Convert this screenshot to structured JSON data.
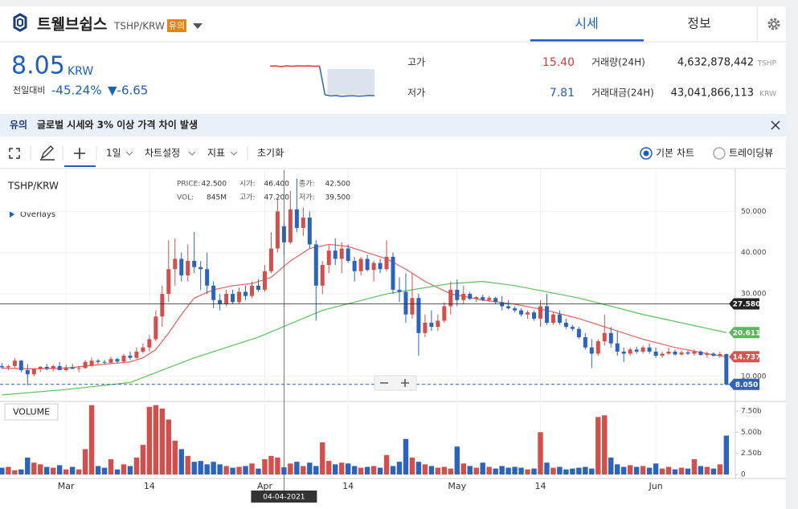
{
  "header": {
    "name": "트웰브쉽스",
    "pair": "TSHP/KRW",
    "badge": "유의",
    "tabs": [
      "시세",
      "정보"
    ]
  },
  "ticker": {
    "price": "8.05",
    "currency": "KRW",
    "change_label": "전일대비",
    "change_rate": "-45.24%",
    "change": "▼-6.65",
    "sparkline": [
      15.3,
      15.4,
      15.2,
      15.4,
      15.3,
      15.4,
      15.35,
      15.4,
      15.3,
      15.35,
      8.3,
      8.0,
      8.1,
      7.9,
      8.0,
      8.05,
      7.95,
      8.0,
      8.1,
      8.05
    ]
  },
  "stats": [
    {
      "label": "고가",
      "value": "15.40",
      "amount_label": "거래량(24H)",
      "amount": "4,632,878,442",
      "unit": "TSHP"
    },
    {
      "label": "저가",
      "value": "7.81",
      "amount_label": "거래대금(24H)",
      "amount": "43,041,866,113",
      "unit": "KRW"
    }
  ],
  "notice": {
    "tag": "유의",
    "text": "글로벌 시세와 3% 이상 가격 차이 발생"
  },
  "toolbar": {
    "interval": "1일",
    "settings": "차트설정",
    "indicators": "지표",
    "reset": "초기화",
    "chart_modes": [
      "기본 차트",
      "트레이딩뷰"
    ]
  },
  "chart_data": {
    "type": "candlestick",
    "symbol": "TSHP/KRW",
    "overlays": "Overlays",
    "volume_label": "VOLUME",
    "up_color": "#d24f4b",
    "down_color": "#2b63bd",
    "readout": [
      {
        "label": "PRICE:",
        "value": "42.500"
      },
      {
        "label": "시가:",
        "value": "46.400"
      },
      {
        "label": "종가:",
        "value": "42.500"
      },
      {
        "label": "VOL:",
        "value": "845M"
      },
      {
        "label": "고가:",
        "value": "47.200"
      },
      {
        "label": "저가:",
        "value": "39.500"
      }
    ],
    "crosshair": {
      "x": 44,
      "label": "04-04-2021"
    },
    "xlim": [
      -0.3,
      114.4
    ],
    "xticks": [
      {
        "value": 10,
        "label": "Mar"
      },
      {
        "value": 23,
        "label": "14"
      },
      {
        "value": 41,
        "label": "Apr"
      },
      {
        "value": 54,
        "label": "14"
      },
      {
        "value": 71,
        "label": "May"
      },
      {
        "value": 84,
        "label": "14"
      },
      {
        "value": 102,
        "label": "Jun"
      }
    ],
    "ylim": [
      4.5,
      60
    ],
    "yticks": [
      {
        "value": 10,
        "label": "10.000"
      },
      {
        "value": 30,
        "label": "30.000"
      },
      {
        "value": 40,
        "label": "40.000"
      },
      {
        "value": 50,
        "label": "50.000"
      }
    ],
    "vol_ylim": [
      0,
      8.64
    ],
    "vol_ticks": [
      {
        "value": 0,
        "label": "0"
      },
      {
        "value": 2.5,
        "label": "2.50b"
      },
      {
        "value": 5,
        "label": "5.00b"
      },
      {
        "value": 7.5,
        "label": "7.50b"
      }
    ],
    "price_badges": [
      {
        "value": 27.58,
        "label": "27.580",
        "color": "#222222",
        "line": "solid"
      },
      {
        "value": 20.611,
        "label": "20.611",
        "color": "#5cb85c",
        "line": "none"
      },
      {
        "value": 14.737,
        "label": "14.737",
        "color": "#d9534f",
        "line": "none"
      },
      {
        "value": 8.05,
        "label": "8.050",
        "color": "#2b63bd",
        "line": "dashed"
      }
    ],
    "ma": [
      {
        "color": "#e0625e",
        "x": [
          0,
          5,
          10,
          15,
          20,
          22,
          24,
          26,
          28,
          30,
          33,
          36,
          39,
          42,
          45,
          48,
          51,
          54,
          57,
          60,
          63,
          66,
          70,
          75,
          80,
          85,
          90,
          95,
          100,
          105,
          110,
          113
        ],
        "values": [
          12,
          11.8,
          12,
          12.8,
          13.5,
          14.5,
          16.5,
          20.5,
          25,
          29,
          31,
          32,
          32.5,
          34,
          38,
          41,
          42,
          41.5,
          40,
          38.5,
          36,
          33,
          30,
          28.5,
          27.5,
          26,
          24,
          21.5,
          19,
          17,
          15.5,
          14.737
        ]
      },
      {
        "color": "#5cc15c",
        "x": [
          0,
          10,
          20,
          30,
          40,
          50,
          60,
          70,
          75,
          80,
          90,
          100,
          113
        ],
        "values": [
          5.5,
          6.8,
          8.5,
          14.5,
          19.5,
          26,
          30,
          32.5,
          33,
          32,
          29,
          25,
          20.611
        ]
      }
    ],
    "ohlc": [
      [
        12.5,
        13.2,
        11.8,
        12.2
      ],
      [
        12.2,
        12.8,
        11.5,
        12.5
      ],
      [
        12.5,
        14.5,
        12.0,
        13.8
      ],
      [
        13.8,
        14.0,
        11.0,
        11.5
      ],
      [
        11.5,
        13.0,
        7.8,
        10.5
      ],
      [
        10.5,
        12.0,
        10.0,
        11.8
      ],
      [
        11.8,
        12.5,
        11.0,
        12.3
      ],
      [
        12.3,
        13.0,
        11.5,
        11.8
      ],
      [
        11.8,
        12.8,
        11.2,
        12.5
      ],
      [
        12.5,
        13.5,
        12.0,
        11.5
      ],
      [
        11.5,
        12.8,
        11.2,
        12.2
      ],
      [
        12.2,
        13.0,
        11.8,
        11.8
      ],
      [
        11.8,
        12.5,
        11.0,
        12.0
      ],
      [
        12.0,
        14.0,
        11.8,
        13.5
      ],
      [
        12.6,
        14.5,
        12.3,
        13.8
      ],
      [
        13.8,
        14.2,
        13.0,
        13.5
      ],
      [
        13.5,
        14.0,
        12.8,
        13.3
      ],
      [
        13.3,
        14.8,
        13.0,
        14.2
      ],
      [
        14.2,
        14.5,
        13.2,
        13.6
      ],
      [
        13.6,
        15.5,
        13.4,
        15.0
      ],
      [
        15.0,
        16.0,
        14.0,
        14.5
      ],
      [
        14.5,
        17.0,
        14.2,
        16.0
      ],
      [
        16.0,
        18.0,
        15.5,
        17.0
      ],
      [
        17.0,
        20.0,
        16.0,
        19.0
      ],
      [
        19.0,
        26.0,
        18.5,
        24.5
      ],
      [
        24.5,
        32.0,
        22.0,
        30.0
      ],
      [
        30.0,
        43.0,
        28.0,
        36.0
      ],
      [
        36.0,
        43.5,
        32.0,
        38.5
      ],
      [
        38.5,
        40.0,
        33.0,
        34.5
      ],
      [
        34.5,
        42.0,
        33.0,
        38.0
      ],
      [
        38.0,
        45.0,
        35.0,
        36.5
      ],
      [
        36.5,
        38.0,
        31.0,
        36.0
      ],
      [
        36.0,
        40.0,
        30.0,
        32.0
      ],
      [
        32.0,
        33.0,
        26.5,
        28.5
      ],
      [
        28.5,
        30.0,
        26.0,
        27.5
      ],
      [
        27.5,
        31.0,
        27.0,
        30.0
      ],
      [
        30.0,
        31.0,
        27.5,
        28.0
      ],
      [
        28.0,
        31.5,
        27.5,
        30.5
      ],
      [
        30.5,
        32.0,
        28.5,
        29.5
      ],
      [
        29.5,
        33.0,
        29.0,
        32.0
      ],
      [
        32.0,
        33.5,
        30.5,
        31.0
      ],
      [
        31.0,
        37.0,
        30.5,
        35.5
      ],
      [
        35.5,
        45.0,
        35.0,
        41.0
      ],
      [
        41.0,
        53.0,
        40.0,
        50.0
      ],
      [
        46.4,
        47.2,
        39.5,
        42.5
      ],
      [
        42.5,
        55.0,
        42.0,
        50.5
      ],
      [
        50.5,
        58.0,
        45.0,
        46.0
      ],
      [
        46.0,
        51.0,
        44.0,
        48.5
      ],
      [
        48.5,
        50.0,
        41.0,
        42.0
      ],
      [
        42.0,
        43.0,
        23.5,
        32.0
      ],
      [
        32.0,
        38.0,
        30.0,
        37.0
      ],
      [
        37.0,
        42.0,
        35.0,
        40.5
      ],
      [
        40.5,
        43.5,
        37.0,
        38.5
      ],
      [
        38.5,
        42.5,
        35.0,
        41.0
      ],
      [
        41.0,
        42.0,
        37.5,
        38.0
      ],
      [
        38.0,
        39.0,
        33.0,
        35.5
      ],
      [
        35.5,
        39.0,
        34.5,
        38.5
      ],
      [
        38.5,
        39.5,
        35.5,
        35.8
      ],
      [
        35.8,
        38.0,
        33.0,
        37.5
      ],
      [
        37.5,
        38.5,
        35.0,
        36.0
      ],
      [
        36.0,
        43.0,
        35.5,
        39.0
      ],
      [
        39.0,
        40.0,
        30.0,
        31.0
      ],
      [
        31.0,
        34.0,
        28.0,
        30.5
      ],
      [
        30.5,
        35.0,
        23.0,
        25.0
      ],
      [
        25.0,
        35.0,
        24.0,
        29.0
      ],
      [
        29.0,
        30.0,
        15.0,
        20.5
      ],
      [
        20.5,
        25.0,
        19.5,
        23.0
      ],
      [
        23.0,
        26.0,
        21.0,
        22.0
      ],
      [
        22.0,
        25.0,
        21.0,
        23.5
      ],
      [
        23.5,
        28.0,
        23.0,
        27.0
      ],
      [
        27.0,
        33.0,
        25.0,
        31.0
      ],
      [
        31.0,
        33.5,
        27.0,
        28.5
      ],
      [
        28.5,
        32.0,
        27.5,
        30.0
      ],
      [
        30.0,
        30.5,
        28.5,
        28.8
      ],
      [
        28.8,
        29.5,
        28.0,
        29.2
      ],
      [
        29.2,
        29.8,
        28.2,
        28.5
      ],
      [
        28.5,
        29.5,
        28.0,
        29.0
      ],
      [
        29.0,
        29.3,
        27.5,
        28.0
      ],
      [
        28.0,
        29.5,
        26.0,
        27.0
      ],
      [
        27.0,
        28.5,
        26.2,
        26.5
      ],
      [
        26.5,
        27.0,
        25.5,
        26.0
      ],
      [
        26.0,
        26.5,
        24.5,
        25.0
      ],
      [
        25.0,
        26.0,
        24.0,
        25.5
      ],
      [
        25.5,
        26.0,
        23.5,
        24.0
      ],
      [
        24.0,
        28.5,
        22.0,
        27.0
      ],
      [
        27.0,
        30.0,
        22.5,
        23.0
      ],
      [
        23.0,
        25.5,
        22.5,
        25.0
      ],
      [
        25.0,
        26.0,
        22.5,
        23.0
      ],
      [
        23.0,
        24.0,
        21.5,
        22.0
      ],
      [
        22.0,
        22.5,
        21.0,
        21.5
      ],
      [
        21.5,
        22.0,
        19.0,
        19.5
      ],
      [
        19.5,
        20.5,
        16.5,
        17.0
      ],
      [
        17.0,
        19.0,
        12.0,
        15.5
      ],
      [
        15.5,
        19.0,
        15.0,
        18.5
      ],
      [
        18.5,
        25.0,
        17.5,
        20.5
      ],
      [
        20.5,
        22.0,
        17.0,
        18.0
      ],
      [
        18.0,
        21.0,
        15.0,
        16.0
      ],
      [
        16.0,
        17.0,
        13.5,
        15.5
      ],
      [
        15.5,
        17.0,
        15.0,
        16.5
      ],
      [
        16.5,
        17.2,
        15.5,
        16.0
      ],
      [
        16.0,
        17.5,
        15.5,
        17.0
      ],
      [
        17.0,
        18.0,
        15.5,
        16.0
      ],
      [
        16.0,
        17.0,
        14.5,
        15.0
      ],
      [
        15.0,
        16.0,
        14.5,
        15.5
      ],
      [
        15.5,
        17.0,
        15.2,
        16.0
      ],
      [
        16.0,
        16.5,
        15.0,
        15.3
      ],
      [
        15.3,
        16.3,
        15.0,
        15.8
      ],
      [
        15.8,
        16.2,
        15.2,
        15.5
      ],
      [
        15.5,
        16.5,
        15.0,
        16.0
      ],
      [
        16.0,
        16.3,
        15.0,
        15.2
      ],
      [
        15.2,
        16.0,
        14.5,
        15.5
      ],
      [
        15.5,
        15.8,
        14.8,
        15.0
      ],
      [
        15.0,
        16.0,
        14.5,
        15.4
      ],
      [
        15.4,
        15.5,
        7.81,
        8.05
      ]
    ],
    "volume": [
      0.8,
      0.9,
      0.5,
      0.6,
      2.0,
      1.4,
      1.2,
      0.9,
      0.8,
      1.1,
      0.6,
      0.9,
      0.6,
      3.0,
      8.2,
      1.0,
      0.8,
      1.8,
      0.6,
      1.2,
      1.0,
      2.0,
      3.5,
      8.0,
      8.2,
      7.8,
      6.5,
      4.0,
      3.0,
      2.2,
      1.5,
      1.6,
      1.2,
      1.5,
      1.2,
      1.0,
      0.8,
      0.9,
      1.0,
      1.3,
      0.7,
      1.8,
      2.2,
      2.0,
      0.845,
      1.3,
      1.5,
      1.0,
      1.4,
      1.0,
      3.8,
      1.6,
      1.2,
      1.4,
      1.3,
      1.0,
      0.8,
      0.9,
      1.0,
      0.8,
      2.3,
      1.0,
      1.5,
      4.2,
      2.0,
      1.5,
      1.2,
      1.0,
      0.8,
      0.9,
      0.7,
      3.3,
      1.3,
      1.0,
      0.8,
      1.4,
      0.9,
      0.7,
      1.0,
      0.8,
      0.9,
      0.8,
      0.6,
      0.7,
      5.0,
      1.4,
      0.8,
      0.9,
      0.6,
      0.7,
      0.8,
      0.9,
      0.7,
      6.8,
      7.0,
      2.0,
      1.2,
      0.9,
      1.1,
      0.9,
      1.0,
      0.8,
      1.3,
      0.7,
      0.9,
      0.6,
      0.8,
      0.7,
      1.8,
      1.0,
      0.9,
      0.7,
      1.2,
      4.6
    ]
  }
}
